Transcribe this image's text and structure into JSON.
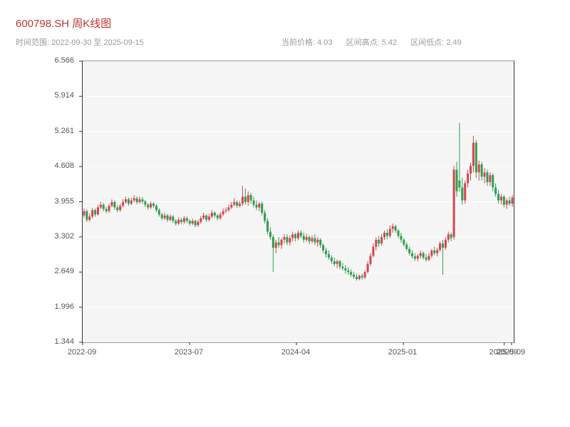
{
  "header": {
    "title": "600798.SH 周K线图",
    "date_range_label": "时间范围: 2022-09-30 至 2025-09-15",
    "stats": [
      {
        "label": "当前价格: 4.03"
      },
      {
        "label": "区间高点: 5.42"
      },
      {
        "label": "区间低点: 2.49"
      }
    ]
  },
  "colors": {
    "title": "#c23531",
    "subtitle_text": "#999999",
    "axis_text": "#555555",
    "frame": "#333333",
    "plot_bg": "#f5f5f6",
    "grid": "#ffffff",
    "up": "#d5454d",
    "down": "#2f9e4e"
  },
  "chart_data": {
    "type": "candlestick",
    "title": "600798.SH 周K线图",
    "symbol": "600798.SH",
    "interval": "weekly",
    "date_range": [
      "2022-09-30",
      "2025-09-15"
    ],
    "current_price": 4.03,
    "range_high": 5.42,
    "range_low": 2.49,
    "ylim": [
      1.344,
      6.566
    ],
    "y_ticks": [
      6.566,
      5.914,
      5.261,
      4.608,
      3.955,
      3.302,
      2.649,
      1.996,
      1.344
    ],
    "x_ticks": [
      {
        "label": "2022-09",
        "pos": 0.0
      },
      {
        "label": "2023-07",
        "pos": 0.248
      },
      {
        "label": "2024-04",
        "pos": 0.496
      },
      {
        "label": "2025-01",
        "pos": 0.744
      },
      {
        "label": "2025-09",
        "pos": 0.978
      },
      {
        "label": "2025-09",
        "pos": 0.995
      }
    ],
    "grid": "horizontal",
    "legend": "none",
    "up_means": "close >= open (red, Chinese convention)",
    "ohlc": [
      [
        3.7,
        3.83,
        3.66,
        3.78
      ],
      [
        3.78,
        3.81,
        3.58,
        3.62
      ],
      [
        3.62,
        3.73,
        3.58,
        3.68
      ],
      [
        3.68,
        3.84,
        3.65,
        3.8
      ],
      [
        3.8,
        3.83,
        3.68,
        3.72
      ],
      [
        3.72,
        3.9,
        3.7,
        3.85
      ],
      [
        3.85,
        3.96,
        3.82,
        3.9
      ],
      [
        3.9,
        3.93,
        3.78,
        3.82
      ],
      [
        3.82,
        3.86,
        3.74,
        3.78
      ],
      [
        3.78,
        3.92,
        3.75,
        3.88
      ],
      [
        3.88,
        4.0,
        3.85,
        3.95
      ],
      [
        3.95,
        3.98,
        3.81,
        3.85
      ],
      [
        3.85,
        3.89,
        3.76,
        3.8
      ],
      [
        3.8,
        3.92,
        3.77,
        3.88
      ],
      [
        3.88,
        4.0,
        3.85,
        3.95
      ],
      [
        3.95,
        4.05,
        3.92,
        4.0
      ],
      [
        4.0,
        4.03,
        3.88,
        3.92
      ],
      [
        3.92,
        4.03,
        3.89,
        3.98
      ],
      [
        3.98,
        4.08,
        3.95,
        4.02
      ],
      [
        4.02,
        4.05,
        3.91,
        3.95
      ],
      [
        3.95,
        4.05,
        3.92,
        4.0
      ],
      [
        4.0,
        4.04,
        3.92,
        3.96
      ],
      [
        3.96,
        3.99,
        3.86,
        3.9
      ],
      [
        3.9,
        3.93,
        3.81,
        3.85
      ],
      [
        3.85,
        3.96,
        3.82,
        3.92
      ],
      [
        3.92,
        3.95,
        3.84,
        3.88
      ],
      [
        3.88,
        3.91,
        3.76,
        3.8
      ],
      [
        3.8,
        3.83,
        3.68,
        3.72
      ],
      [
        3.72,
        3.75,
        3.61,
        3.65
      ],
      [
        3.65,
        3.75,
        3.62,
        3.7
      ],
      [
        3.7,
        3.73,
        3.58,
        3.62
      ],
      [
        3.62,
        3.72,
        3.59,
        3.68
      ],
      [
        3.68,
        3.71,
        3.56,
        3.6
      ],
      [
        3.6,
        3.63,
        3.51,
        3.55
      ],
      [
        3.55,
        3.66,
        3.52,
        3.62
      ],
      [
        3.62,
        3.65,
        3.54,
        3.58
      ],
      [
        3.58,
        3.69,
        3.55,
        3.65
      ],
      [
        3.65,
        3.68,
        3.56,
        3.6
      ],
      [
        3.6,
        3.63,
        3.51,
        3.55
      ],
      [
        3.55,
        3.64,
        3.52,
        3.6
      ],
      [
        3.6,
        3.62,
        3.48,
        3.52
      ],
      [
        3.52,
        3.62,
        3.49,
        3.58
      ],
      [
        3.58,
        3.69,
        3.55,
        3.65
      ],
      [
        3.65,
        3.75,
        3.62,
        3.7
      ],
      [
        3.7,
        3.72,
        3.58,
        3.62
      ],
      [
        3.62,
        3.73,
        3.59,
        3.68
      ],
      [
        3.68,
        3.8,
        3.65,
        3.75
      ],
      [
        3.75,
        3.78,
        3.66,
        3.7
      ],
      [
        3.7,
        3.73,
        3.61,
        3.65
      ],
      [
        3.65,
        3.76,
        3.62,
        3.72
      ],
      [
        3.72,
        3.83,
        3.69,
        3.78
      ],
      [
        3.78,
        3.85,
        3.74,
        3.8
      ],
      [
        3.8,
        3.9,
        3.77,
        3.85
      ],
      [
        3.85,
        3.95,
        3.82,
        3.9
      ],
      [
        3.9,
        4.02,
        3.87,
        3.95
      ],
      [
        3.95,
        3.98,
        3.84,
        3.88
      ],
      [
        3.88,
        3.97,
        3.85,
        3.92
      ],
      [
        3.92,
        4.25,
        3.88,
        4.05
      ],
      [
        4.05,
        4.2,
        3.9,
        3.95
      ],
      [
        3.95,
        4.15,
        3.88,
        4.08
      ],
      [
        4.08,
        4.12,
        3.92,
        3.98
      ],
      [
        3.98,
        4.05,
        3.85,
        3.9
      ],
      [
        3.9,
        3.98,
        3.8,
        3.85
      ],
      [
        3.85,
        3.95,
        3.78,
        3.92
      ],
      [
        3.92,
        3.96,
        3.7,
        3.75
      ],
      [
        3.75,
        3.8,
        3.55,
        3.6
      ],
      [
        3.6,
        3.65,
        3.35,
        3.4
      ],
      [
        3.4,
        3.48,
        3.25,
        3.3
      ],
      [
        3.3,
        3.35,
        2.65,
        3.1
      ],
      [
        3.1,
        3.25,
        3.0,
        3.2
      ],
      [
        3.2,
        3.3,
        3.1,
        3.15
      ],
      [
        3.15,
        3.28,
        3.08,
        3.25
      ],
      [
        3.25,
        3.35,
        3.18,
        3.3
      ],
      [
        3.3,
        3.35,
        3.15,
        3.2
      ],
      [
        3.2,
        3.33,
        3.14,
        3.28
      ],
      [
        3.28,
        3.4,
        3.22,
        3.35
      ],
      [
        3.35,
        3.38,
        3.22,
        3.28
      ],
      [
        3.28,
        3.42,
        3.24,
        3.38
      ],
      [
        3.38,
        3.42,
        3.28,
        3.32
      ],
      [
        3.32,
        3.38,
        3.2,
        3.25
      ],
      [
        3.25,
        3.36,
        3.21,
        3.3
      ],
      [
        3.3,
        3.33,
        3.17,
        3.22
      ],
      [
        3.22,
        3.33,
        3.18,
        3.28
      ],
      [
        3.28,
        3.35,
        3.15,
        3.2
      ],
      [
        3.2,
        3.3,
        3.12,
        3.25
      ],
      [
        3.25,
        3.28,
        3.1,
        3.15
      ],
      [
        3.15,
        3.18,
        3.0,
        3.05
      ],
      [
        3.05,
        3.1,
        2.92,
        2.98
      ],
      [
        2.98,
        3.05,
        2.88,
        2.92
      ],
      [
        2.92,
        2.96,
        2.8,
        2.85
      ],
      [
        2.85,
        2.92,
        2.76,
        2.8
      ],
      [
        2.8,
        2.88,
        2.72,
        2.85
      ],
      [
        2.85,
        2.88,
        2.7,
        2.75
      ],
      [
        2.75,
        2.82,
        2.68,
        2.72
      ],
      [
        2.72,
        2.78,
        2.62,
        2.68
      ],
      [
        2.68,
        2.74,
        2.6,
        2.65
      ],
      [
        2.65,
        2.7,
        2.56,
        2.6
      ],
      [
        2.6,
        2.66,
        2.52,
        2.56
      ],
      [
        2.56,
        2.62,
        2.49,
        2.52
      ],
      [
        2.52,
        2.6,
        2.5,
        2.58
      ],
      [
        2.58,
        2.62,
        2.51,
        2.55
      ],
      [
        2.55,
        2.68,
        2.52,
        2.65
      ],
      [
        2.65,
        2.85,
        2.62,
        2.8
      ],
      [
        2.8,
        3.0,
        2.76,
        2.95
      ],
      [
        2.95,
        3.18,
        2.92,
        3.12
      ],
      [
        3.12,
        3.3,
        3.05,
        3.25
      ],
      [
        3.25,
        3.32,
        3.12,
        3.18
      ],
      [
        3.18,
        3.35,
        3.14,
        3.3
      ],
      [
        3.3,
        3.42,
        3.25,
        3.38
      ],
      [
        3.38,
        3.44,
        3.26,
        3.32
      ],
      [
        3.32,
        3.52,
        3.28,
        3.45
      ],
      [
        3.45,
        3.55,
        3.38,
        3.5
      ],
      [
        3.5,
        3.53,
        3.38,
        3.42
      ],
      [
        3.42,
        3.45,
        3.28,
        3.32
      ],
      [
        3.32,
        3.38,
        3.2,
        3.25
      ],
      [
        3.25,
        3.28,
        3.12,
        3.16
      ],
      [
        3.16,
        3.2,
        3.04,
        3.08
      ],
      [
        3.08,
        3.12,
        2.96,
        3.0
      ],
      [
        3.0,
        3.06,
        2.9,
        2.94
      ],
      [
        2.94,
        3.0,
        2.86,
        2.9
      ],
      [
        2.9,
        2.98,
        2.85,
        2.95
      ],
      [
        2.95,
        3.05,
        2.9,
        3.0
      ],
      [
        3.0,
        3.03,
        2.88,
        2.92
      ],
      [
        2.92,
        2.98,
        2.84,
        2.88
      ],
      [
        2.88,
        3.0,
        2.85,
        2.95
      ],
      [
        2.95,
        3.08,
        2.91,
        3.05
      ],
      [
        3.05,
        3.12,
        2.96,
        3.0
      ],
      [
        3.0,
        3.1,
        2.94,
        3.06
      ],
      [
        3.06,
        3.22,
        3.02,
        3.18
      ],
      [
        3.18,
        3.25,
        2.6,
        3.1
      ],
      [
        3.1,
        3.3,
        3.06,
        3.25
      ],
      [
        3.25,
        3.4,
        3.2,
        3.35
      ],
      [
        3.35,
        3.38,
        3.22,
        3.28
      ],
      [
        3.3,
        4.62,
        3.25,
        4.55
      ],
      [
        4.55,
        4.7,
        4.05,
        4.15
      ],
      [
        4.35,
        5.42,
        4.15,
        4.22
      ],
      [
        4.22,
        4.4,
        3.9,
        3.98
      ],
      [
        3.98,
        4.35,
        3.92,
        4.3
      ],
      [
        4.3,
        4.55,
        4.22,
        4.48
      ],
      [
        4.48,
        4.68,
        4.35,
        4.62
      ],
      [
        4.62,
        5.18,
        4.5,
        5.05
      ],
      [
        5.05,
        5.1,
        4.4,
        4.5
      ],
      [
        4.5,
        4.72,
        4.35,
        4.65
      ],
      [
        4.65,
        4.7,
        4.35,
        4.42
      ],
      [
        4.42,
        4.58,
        4.3,
        4.5
      ],
      [
        4.5,
        4.55,
        4.25,
        4.32
      ],
      [
        4.32,
        4.5,
        4.25,
        4.45
      ],
      [
        4.45,
        4.48,
        4.15,
        4.22
      ],
      [
        4.22,
        4.3,
        4.05,
        4.1
      ],
      [
        4.1,
        4.18,
        3.92,
        3.98
      ],
      [
        3.98,
        4.1,
        3.9,
        4.05
      ],
      [
        4.05,
        4.08,
        3.85,
        3.9
      ],
      [
        3.9,
        4.02,
        3.82,
        3.98
      ],
      [
        3.98,
        4.05,
        3.88,
        3.92
      ],
      [
        3.92,
        4.08,
        3.86,
        4.03
      ]
    ]
  }
}
